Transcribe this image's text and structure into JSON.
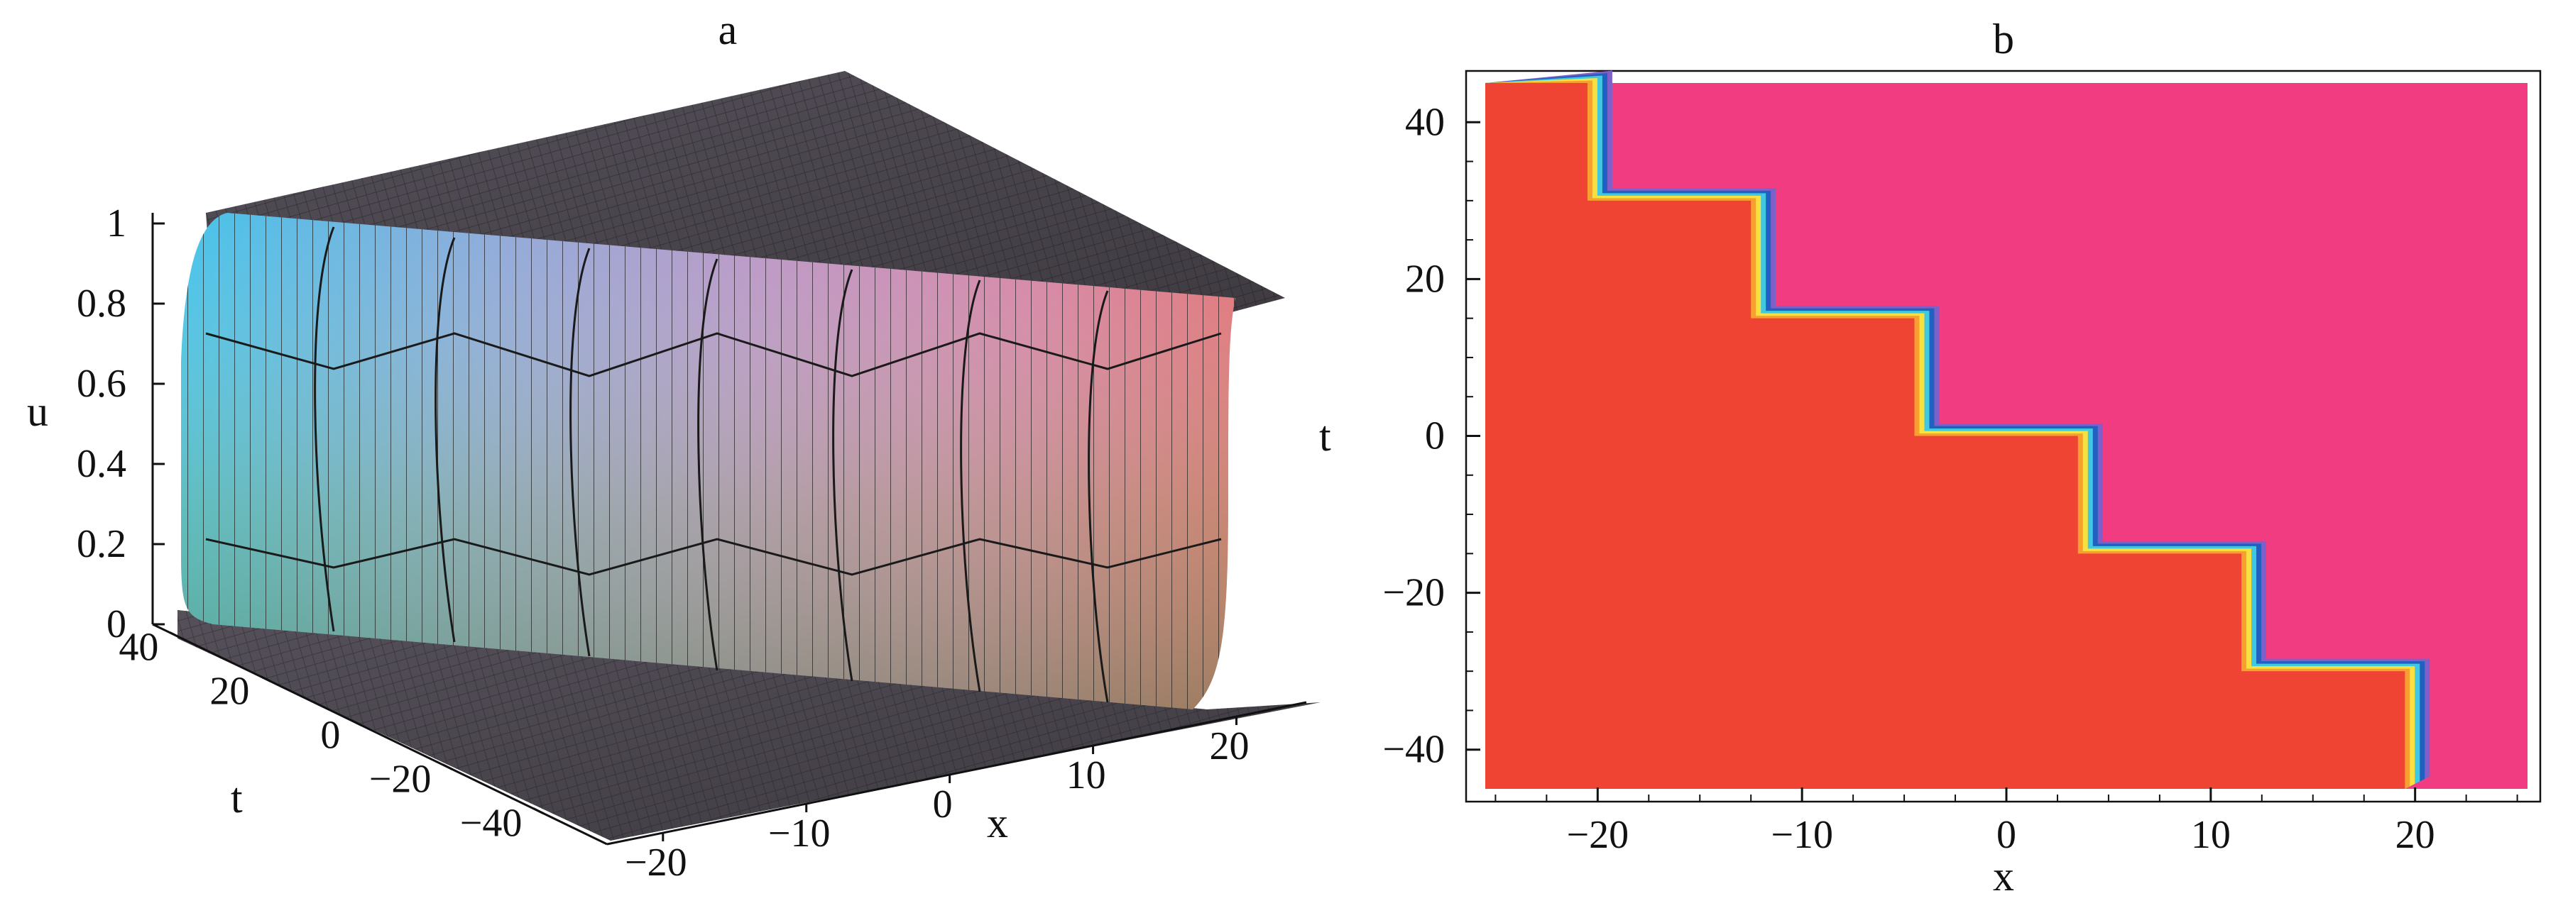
{
  "chart_data": [
    {
      "type": "surface",
      "title": "a",
      "xlabel": "x",
      "ylabel": "t",
      "zlabel": "u",
      "xlim": [
        -25,
        25
      ],
      "ylim": [
        -45,
        45
      ],
      "zlim": [
        0,
        1
      ],
      "x_ticks": [
        "−20",
        "−10",
        "0",
        "10",
        "20"
      ],
      "t_ticks": [
        "40",
        "20",
        "0",
        "−20",
        "−40"
      ],
      "u_ticks": [
        "1",
        "0.8",
        "0.6",
        "0.4",
        "0.2",
        "0"
      ],
      "description_values": {
        "step_count": 7,
        "step_height_t": 15,
        "step_shift_x": 8,
        "u_low": 0,
        "u_high": 1
      },
      "colors": [
        "#30b8e0",
        "#80a8d8",
        "#b890c0",
        "#d880a8",
        "#e06a78",
        "#6ab070",
        "#c0a880"
      ]
    },
    {
      "type": "heatmap",
      "title": "b",
      "xlabel": "x",
      "ylabel": "t",
      "xlim": [
        -26,
        26
      ],
      "ylim": [
        -46,
        46
      ],
      "x_ticks": [
        "−20",
        "−10",
        "0",
        "10",
        "20"
      ],
      "y_ticks": [
        "40",
        "20",
        "0",
        "−20",
        "−40"
      ],
      "boundary": [
        {
          "t": 45,
          "x": -20.5
        },
        {
          "t": 30,
          "x": -20.5
        },
        {
          "t": 30,
          "x": -12.5
        },
        {
          "t": 15,
          "x": -12.5
        },
        {
          "t": 15,
          "x": -4.5
        },
        {
          "t": 0,
          "x": -4.5
        },
        {
          "t": 0,
          "x": 3.5
        },
        {
          "t": -15,
          "x": 3.5
        },
        {
          "t": -15,
          "x": 11.5
        },
        {
          "t": -30,
          "x": 11.5
        },
        {
          "t": -30,
          "x": 19.5
        },
        {
          "t": -45,
          "x": 19.5
        }
      ],
      "region_colors": {
        "low": "#ef4433",
        "high": "#f23c82"
      },
      "edge_colors": [
        "#f7a030",
        "#f7e040",
        "#40c8e0",
        "#2060c0",
        "#8060c8"
      ]
    }
  ]
}
